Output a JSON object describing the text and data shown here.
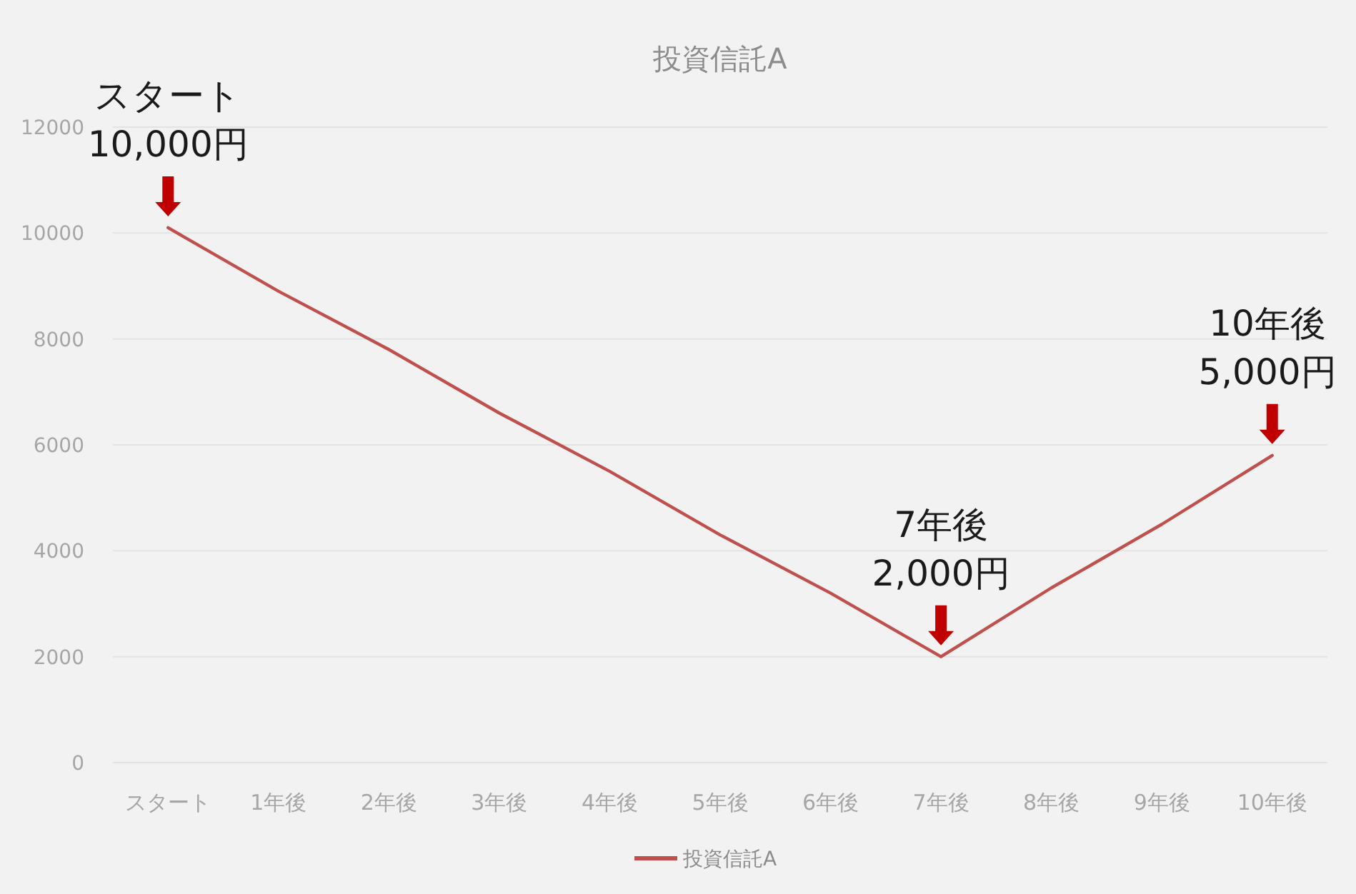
{
  "chart_data": {
    "type": "line",
    "title": "投資信託A",
    "categories": [
      "スタート",
      "1年後",
      "2年後",
      "3年後",
      "4年後",
      "5年後",
      "6年後",
      "7年後",
      "8年後",
      "9年後",
      "10年後"
    ],
    "series": [
      {
        "name": "投資信託A",
        "color": "#c0504d",
        "values": [
          10100,
          8900,
          7800,
          6600,
          5500,
          4300,
          3200,
          2000,
          3300,
          4500,
          5800
        ]
      }
    ],
    "ylim": [
      0,
      12000
    ],
    "yticks": [
      0,
      2000,
      4000,
      6000,
      8000,
      10000,
      12000
    ],
    "grid": "y",
    "legend": "bottom",
    "marker": "none",
    "annotations": [
      {
        "text": "スタート\n10,000円",
        "x": "スタート",
        "y": 10100
      },
      {
        "text": "7年後\n2,000円",
        "x": "7年後",
        "y": 2000
      },
      {
        "text": "10年後\n5,000円",
        "x": "10年後",
        "y": 5800
      }
    ]
  }
}
